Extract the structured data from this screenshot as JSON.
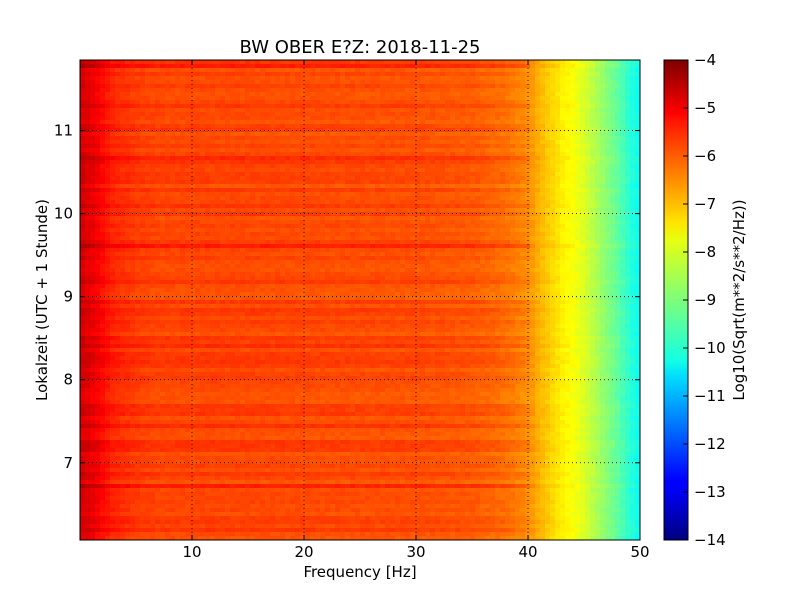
{
  "chart_data": {
    "type": "heatmap",
    "title": "BW OBER E?Z: 2018-11-25",
    "xlabel": "Frequency [Hz]",
    "ylabel": "Lokalzeit (UTC + 1 Stunde)",
    "colorbar_label": "Log10(Sqrt(m**2/s**2/Hz))",
    "xlim": [
      0,
      50
    ],
    "ylim": [
      11.85,
      6.07
    ],
    "x_ticks": [
      10,
      20,
      30,
      40,
      50
    ],
    "y_ticks": [
      7,
      8,
      9,
      10,
      11
    ],
    "colorbar_range": [
      -14,
      -4
    ],
    "colorbar_ticks": [
      -4,
      -5,
      -6,
      -7,
      -8,
      -9,
      -10,
      -11,
      -12,
      -13,
      -14
    ],
    "colormap": "jet",
    "grid": true,
    "frequency_profile_hz": [
      0,
      1,
      2,
      3,
      5,
      7,
      10,
      20,
      30,
      35,
      38,
      40,
      41,
      42,
      43,
      44,
      45,
      46,
      47,
      48,
      49,
      50
    ],
    "frequency_profile_log10_amplitude": [
      -4.8,
      -5.0,
      -5.3,
      -5.6,
      -5.8,
      -5.9,
      -5.9,
      -5.95,
      -6.0,
      -6.1,
      -6.3,
      -6.6,
      -7.0,
      -7.3,
      -7.6,
      -7.8,
      -8.1,
      -8.5,
      -8.9,
      -9.3,
      -9.8,
      -10.2
    ]
  }
}
